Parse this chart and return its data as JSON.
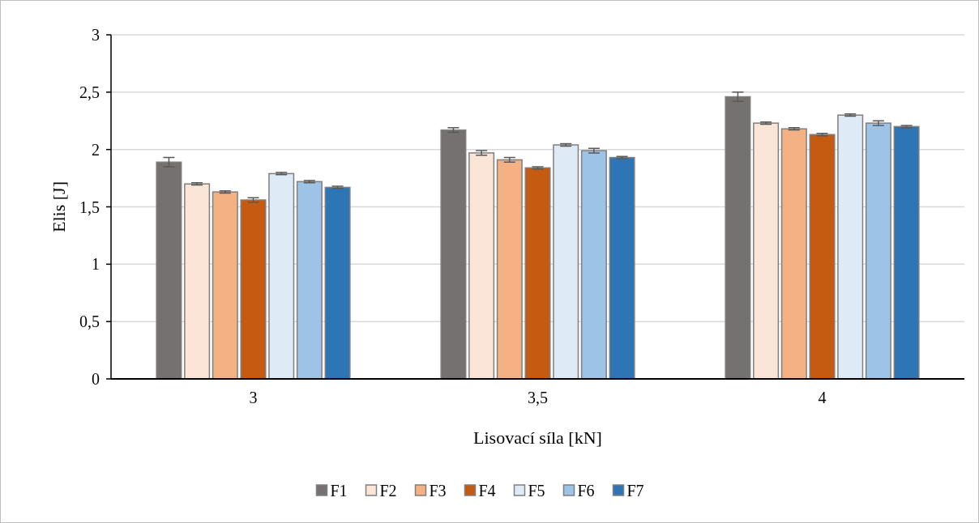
{
  "chart_data": {
    "type": "bar",
    "xlabel": "Lisovací síla [kN]",
    "ylabel": "Elis [J]",
    "categories": [
      "3",
      "3,5",
      "4"
    ],
    "series": [
      {
        "name": "F1",
        "color": "#767171",
        "values": [
          1.89,
          2.17,
          2.46
        ],
        "errors": [
          0.04,
          0.02,
          0.04
        ]
      },
      {
        "name": "F2",
        "color": "#fbe5d6",
        "values": [
          1.7,
          1.97,
          2.23
        ],
        "errors": [
          0.01,
          0.02,
          0.01
        ]
      },
      {
        "name": "F3",
        "color": "#f4b183",
        "values": [
          1.63,
          1.91,
          2.18
        ],
        "errors": [
          0.01,
          0.02,
          0.01
        ]
      },
      {
        "name": "F4",
        "color": "#c55a11",
        "values": [
          1.56,
          1.84,
          2.13
        ],
        "errors": [
          0.02,
          0.01,
          0.01
        ]
      },
      {
        "name": "F5",
        "color": "#deebf7",
        "values": [
          1.79,
          2.04,
          2.3
        ],
        "errors": [
          0.01,
          0.01,
          0.01
        ]
      },
      {
        "name": "F6",
        "color": "#9dc3e6",
        "values": [
          1.72,
          1.99,
          2.23
        ],
        "errors": [
          0.01,
          0.02,
          0.02
        ]
      },
      {
        "name": "F7",
        "color": "#2e75b6",
        "values": [
          1.67,
          1.93,
          2.2
        ],
        "errors": [
          0.01,
          0.01,
          0.01
        ]
      }
    ],
    "ylim": [
      0,
      3
    ],
    "yticks": [
      0,
      {
        "value": 0.5,
        "label": "0,5"
      },
      1,
      {
        "value": 1.5,
        "label": "1,5"
      },
      2,
      {
        "value": 2.5,
        "label": "2,5"
      },
      3
    ],
    "grid": "y",
    "legend": "bottom"
  }
}
